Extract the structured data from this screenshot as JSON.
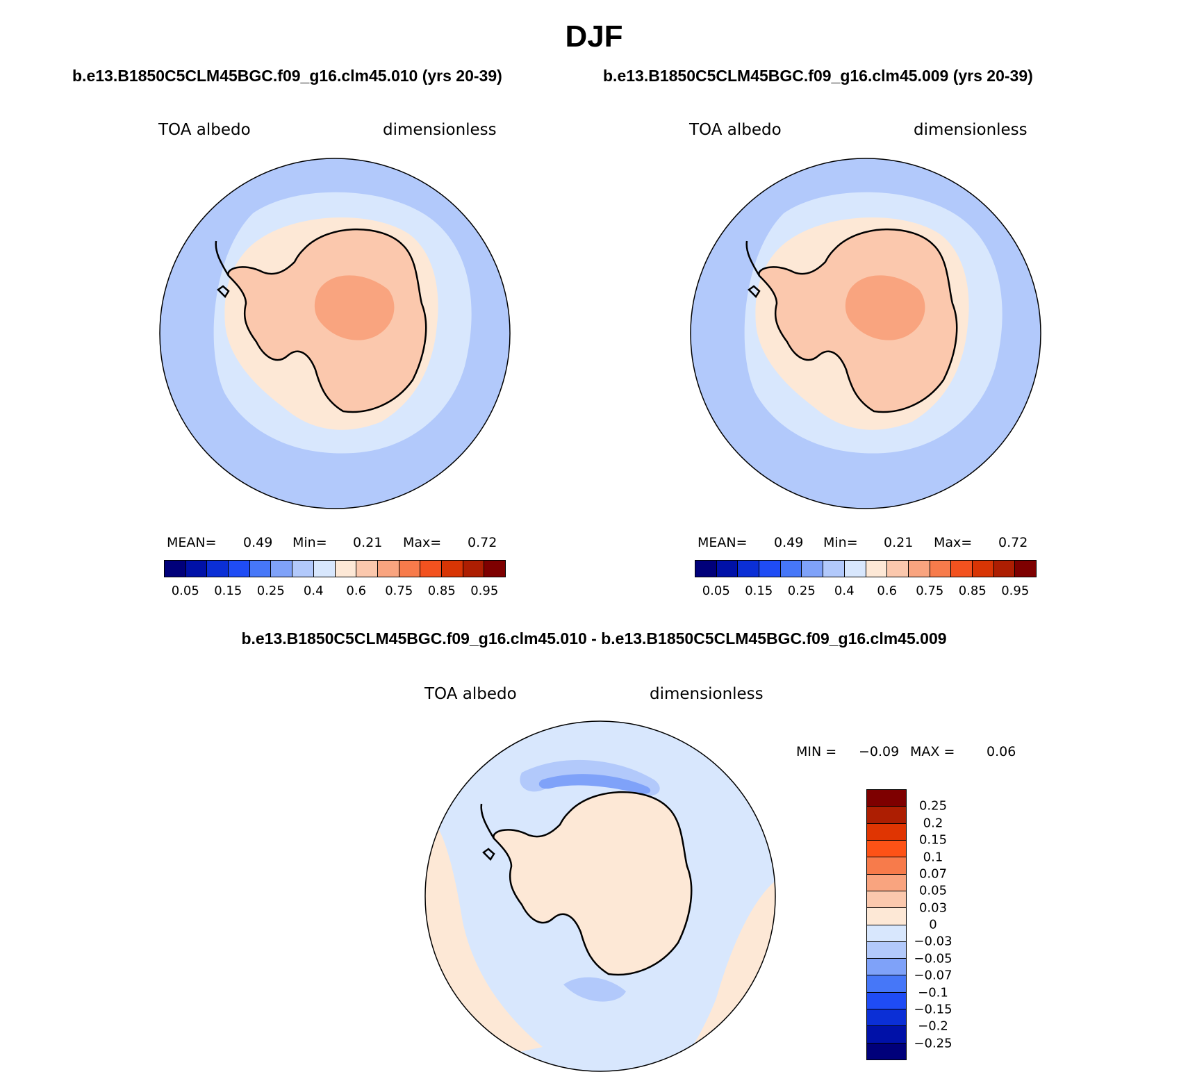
{
  "figure": {
    "season": "DJF",
    "case1_title": "b.e13.B1850C5CLM45BGC.f09_g16.clm45.010 (yrs 20-39)",
    "case2_title": "b.e13.B1850C5CLM45BGC.f09_g16.clm45.009 (yrs 20-39)",
    "diff_title": "b.e13.B1850C5CLM45BGC.f09_g16.clm45.010 - b.e13.B1850C5CLM45BGC.f09_g16.clm45.009"
  },
  "panel1": {
    "variable": "TOA albedo",
    "units": "dimensionless",
    "mean_label": "MEAN=",
    "mean": "0.49",
    "min_label": "Min=",
    "min": "0.21",
    "max_label": "Max=",
    "max": "0.72"
  },
  "panel2": {
    "variable": "TOA albedo",
    "units": "dimensionless",
    "mean_label": "MEAN=",
    "mean": "0.49",
    "min_label": "Min=",
    "min": "0.21",
    "max_label": "Max=",
    "max": "0.72"
  },
  "panel3": {
    "variable": "TOA albedo",
    "units": "dimensionless",
    "min_label": "MIN =",
    "min": "−0.09",
    "max_label": "MAX =",
    "max": "0.06"
  },
  "colorbar_abs": {
    "colors": [
      "#00007a",
      "#0011a8",
      "#0b2fd6",
      "#1f4cf5",
      "#4677f8",
      "#7fa2f9",
      "#b2c9fb",
      "#d8e7fd",
      "#fde8d6",
      "#fbc8ad",
      "#f9a47f",
      "#f77b4b",
      "#f3521f",
      "#d83505",
      "#ad1e02",
      "#7e0000"
    ],
    "ticks": [
      "0.05",
      "0.15",
      "0.25",
      "0.4",
      "0.6",
      "0.75",
      "0.85",
      "0.95"
    ]
  },
  "colorbar_diff": {
    "colors": [
      "#7e0000",
      "#ad1e02",
      "#e03502",
      "#fd5216",
      "#f77b4b",
      "#f9a47f",
      "#fbc8ad",
      "#fde8d6",
      "#d8e7fd",
      "#b2c9fb",
      "#7fa2f9",
      "#4677f8",
      "#1f4cf5",
      "#0b2fd6",
      "#0011a8",
      "#00007a"
    ],
    "ticks": [
      "0.25",
      "0.2",
      "0.15",
      "0.1",
      "0.07",
      "0.05",
      "0.03",
      "0",
      "−0.03",
      "−0.05",
      "−0.07",
      "−0.1",
      "−0.15",
      "−0.2",
      "−0.25"
    ]
  },
  "map_colors": {
    "ocean_far": "#b2c9fb",
    "ocean_mid": "#d8e7fd",
    "ice_ring": "#fde8d6",
    "continent": "#fbc8ad",
    "plateau": "#f9a47f",
    "diff_base": "#d8e7fd",
    "diff_warm": "#fde8d6",
    "diff_cool": "#b2c9fb",
    "diff_cooler": "#7fa2f9",
    "coast": "#000000"
  }
}
